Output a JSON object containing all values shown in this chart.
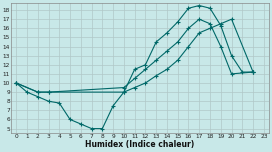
{
  "xlabel": "Humidex (Indice chaleur)",
  "bg_color": "#c8e8e8",
  "grid_color": "#b0c8c8",
  "line_color": "#006868",
  "xlim": [
    -0.5,
    23.5
  ],
  "ylim": [
    4.5,
    18.8
  ],
  "xticks": [
    0,
    1,
    2,
    3,
    4,
    5,
    6,
    7,
    8,
    9,
    10,
    11,
    12,
    13,
    14,
    15,
    16,
    17,
    18,
    19,
    20,
    21,
    22,
    23
  ],
  "yticks": [
    5,
    6,
    7,
    8,
    9,
    10,
    11,
    12,
    13,
    14,
    15,
    16,
    17,
    18
  ],
  "curve1_x": [
    0,
    1,
    2,
    3,
    4,
    5,
    6,
    7,
    8,
    9,
    10,
    11,
    12,
    13,
    14,
    15,
    16,
    17,
    18,
    19,
    20,
    21,
    22
  ],
  "curve1_y": [
    10,
    9,
    8.5,
    8,
    7.8,
    6,
    5.5,
    5,
    5,
    7.5,
    9,
    11.5,
    12,
    14.5,
    15.5,
    16.7,
    18.2,
    18.5,
    18.2,
    16.3,
    13,
    11.2,
    11.2
  ],
  "curve2_x": [
    0,
    2,
    3,
    10,
    11,
    12,
    13,
    14,
    15,
    16,
    17,
    18,
    19,
    20,
    22
  ],
  "curve2_y": [
    10,
    9,
    9,
    9.5,
    10.5,
    11.5,
    12.5,
    13.5,
    14.5,
    16,
    17,
    16.5,
    14,
    11,
    11.2
  ],
  "curve3_x": [
    0,
    2,
    3,
    10,
    11,
    12,
    13,
    14,
    15,
    16,
    17,
    18,
    19,
    20,
    22
  ],
  "curve3_y": [
    10,
    9,
    9,
    9,
    9.5,
    10,
    10.8,
    11.5,
    12.5,
    14,
    15.5,
    16,
    16.5,
    17,
    11.2
  ]
}
